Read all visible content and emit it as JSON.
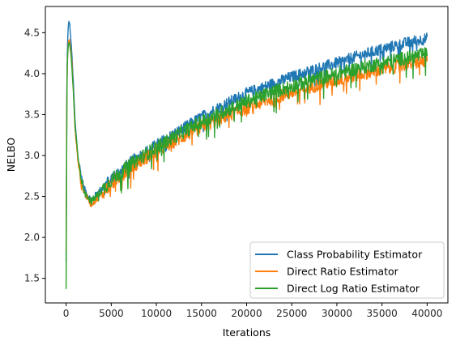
{
  "chart_data": {
    "type": "line",
    "xlabel": "Iterations",
    "ylabel": "NELBO",
    "xlim": [
      -2300,
      42300
    ],
    "ylim": [
      1.2,
      4.82
    ],
    "xticks": [
      0,
      5000,
      10000,
      15000,
      20000,
      25000,
      30000,
      35000,
      40000
    ],
    "xtick_labels": [
      "0",
      "5000",
      "10000",
      "15000",
      "20000",
      "25000",
      "30000",
      "35000",
      "40000"
    ],
    "yticks": [
      1.5,
      2.0,
      2.5,
      3.0,
      3.5,
      4.0,
      4.5
    ],
    "ytick_labels": [
      "1.5",
      "2.0",
      "2.5",
      "3.0",
      "3.5",
      "4.0",
      "4.5"
    ],
    "grid": false,
    "legend_position": "lower-right",
    "series": [
      {
        "name": "Class Probability Estimator",
        "color": "#1f77b4",
        "noise": 0.07,
        "x": [
          0,
          100,
          200,
          300,
          400,
          600,
          800,
          1000,
          1300,
          1600,
          2000,
          2500,
          2800,
          3500,
          5000,
          7500,
          10000,
          12500,
          15000,
          17500,
          20000,
          22500,
          25000,
          27500,
          30000,
          32500,
          35000,
          37500,
          40000
        ],
        "y": [
          1.7,
          4.1,
          4.5,
          4.64,
          4.6,
          4.3,
          3.9,
          3.4,
          3.0,
          2.8,
          2.6,
          2.5,
          2.46,
          2.55,
          2.72,
          2.95,
          3.13,
          3.3,
          3.47,
          3.62,
          3.76,
          3.86,
          3.96,
          4.05,
          4.13,
          4.22,
          4.3,
          4.37,
          4.43
        ]
      },
      {
        "name": "Direct Ratio Estimator",
        "color": "#ff7f0e",
        "noise": 0.08,
        "x": [
          0,
          100,
          200,
          300,
          400,
          600,
          800,
          1000,
          1300,
          1600,
          2000,
          2500,
          2800,
          3500,
          5000,
          7500,
          10000,
          12500,
          15000,
          17500,
          20000,
          22500,
          25000,
          27500,
          30000,
          32500,
          35000,
          37500,
          40000
        ],
        "y": [
          1.8,
          4.0,
          4.3,
          4.42,
          4.4,
          4.2,
          3.8,
          3.3,
          2.95,
          2.7,
          2.55,
          2.45,
          2.41,
          2.48,
          2.65,
          2.88,
          3.05,
          3.2,
          3.35,
          3.47,
          3.58,
          3.68,
          3.77,
          3.85,
          3.92,
          3.99,
          4.05,
          4.11,
          4.16
        ]
      },
      {
        "name": "Direct Log Ratio Estimator",
        "color": "#2ca02c",
        "noise": 0.085,
        "x": [
          0,
          100,
          200,
          300,
          400,
          600,
          800,
          1000,
          1300,
          1600,
          2000,
          2500,
          2800,
          3500,
          5000,
          7500,
          10000,
          12500,
          15000,
          17500,
          20000,
          22500,
          25000,
          27500,
          30000,
          32500,
          35000,
          37500,
          40000
        ],
        "y": [
          1.35,
          4.0,
          4.3,
          4.38,
          4.35,
          4.15,
          3.8,
          3.35,
          3.0,
          2.75,
          2.58,
          2.48,
          2.44,
          2.52,
          2.7,
          2.92,
          3.1,
          3.26,
          3.41,
          3.54,
          3.66,
          3.76,
          3.85,
          3.93,
          4.0,
          4.07,
          4.13,
          4.19,
          4.24
        ]
      }
    ]
  }
}
